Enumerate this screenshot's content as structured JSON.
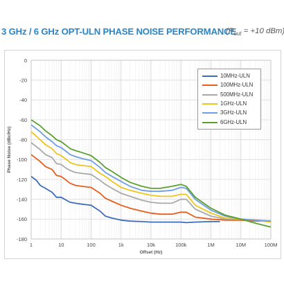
{
  "header": {
    "title": "3 GHz / 6 GHz OPT-ULN PHASE NOISE PERFORMANCE",
    "condition_prefix": "(P",
    "condition_sub": "out",
    "condition_suffix": " = +10 dBm)"
  },
  "chart_data": {
    "type": "line",
    "title": "3 GHz / 6 GHz OPT-ULN PHASE NOISE PERFORMANCE (Pout = +10 dBm)",
    "xlabel": "Offset (Hz)",
    "ylabel": "Phase Noise (dBc/Hz)",
    "x_scale": "log",
    "xlim": [
      1,
      100000000
    ],
    "ylim": [
      -180,
      0
    ],
    "x_ticks": [
      1,
      10,
      100,
      1000,
      10000,
      100000,
      1000000,
      10000000,
      100000000
    ],
    "x_tick_labels": [
      "1",
      "10",
      "100",
      "1k",
      "10k",
      "100k",
      "1M",
      "10M",
      "100M"
    ],
    "y_ticks": [
      0,
      -20,
      -40,
      -60,
      -80,
      -100,
      -120,
      -140,
      -160,
      -180
    ],
    "y_tick_labels": [
      "0",
      "-20",
      "-40",
      "-60",
      "-80",
      "-100",
      "-120",
      "-140",
      "-160",
      "-180"
    ],
    "grid": true,
    "legend_position": "top-right",
    "series": [
      {
        "name": "10MHz-ULN",
        "color": "#3d6bb8",
        "points": [
          [
            1,
            -117
          ],
          [
            1.5,
            -121
          ],
          [
            2,
            -126
          ],
          [
            3,
            -129
          ],
          [
            5,
            -133
          ],
          [
            7,
            -138
          ],
          [
            10,
            -138
          ],
          [
            15,
            -141
          ],
          [
            20,
            -143
          ],
          [
            30,
            -144
          ],
          [
            50,
            -145
          ],
          [
            100,
            -146
          ],
          [
            200,
            -152
          ],
          [
            300,
            -157
          ],
          [
            500,
            -159
          ],
          [
            1000,
            -161
          ],
          [
            2000,
            -162
          ],
          [
            5000,
            -162.5
          ],
          [
            10000,
            -163
          ],
          [
            30000,
            -163
          ],
          [
            100000,
            -163
          ],
          [
            150000,
            -163.5
          ],
          [
            300000,
            -163
          ],
          [
            1000000,
            -162.5
          ],
          [
            2000000,
            -162.5
          ]
        ]
      },
      {
        "name": "100MHz-ULN",
        "color": "#e85d1a",
        "points": [
          [
            1,
            -95
          ],
          [
            2,
            -102
          ],
          [
            3,
            -107
          ],
          [
            5,
            -110
          ],
          [
            7,
            -116
          ],
          [
            10,
            -117
          ],
          [
            15,
            -121
          ],
          [
            20,
            -124
          ],
          [
            30,
            -126
          ],
          [
            50,
            -127
          ],
          [
            100,
            -128
          ],
          [
            200,
            -134
          ],
          [
            300,
            -139
          ],
          [
            500,
            -142
          ],
          [
            1000,
            -146
          ],
          [
            2000,
            -149
          ],
          [
            5000,
            -152
          ],
          [
            10000,
            -154
          ],
          [
            20000,
            -155
          ],
          [
            50000,
            -155
          ],
          [
            100000,
            -153
          ],
          [
            150000,
            -153
          ],
          [
            300000,
            -158
          ],
          [
            1000000,
            -160
          ],
          [
            3000000,
            -161
          ],
          [
            10000000,
            -161
          ],
          [
            30000000,
            -162
          ],
          [
            100000000,
            -162
          ]
        ]
      },
      {
        "name": "500MHz-ULN",
        "color": "#a9a9a9",
        "points": [
          [
            1,
            -83
          ],
          [
            2,
            -90
          ],
          [
            3,
            -95
          ],
          [
            5,
            -98
          ],
          [
            7,
            -104
          ],
          [
            10,
            -105
          ],
          [
            15,
            -109
          ],
          [
            20,
            -111
          ],
          [
            30,
            -113
          ],
          [
            50,
            -114
          ],
          [
            100,
            -115
          ],
          [
            200,
            -121
          ],
          [
            300,
            -125
          ],
          [
            500,
            -129
          ],
          [
            1000,
            -134
          ],
          [
            2000,
            -137
          ],
          [
            5000,
            -141
          ],
          [
            10000,
            -143
          ],
          [
            20000,
            -144
          ],
          [
            50000,
            -144
          ],
          [
            100000,
            -140
          ],
          [
            150000,
            -140
          ],
          [
            300000,
            -150
          ],
          [
            1000000,
            -157
          ],
          [
            3000000,
            -160
          ],
          [
            10000000,
            -160
          ],
          [
            30000000,
            -161
          ],
          [
            100000000,
            -162
          ]
        ]
      },
      {
        "name": "1GHz-ULN",
        "color": "#f0c419",
        "points": [
          [
            1,
            -72
          ],
          [
            2,
            -80
          ],
          [
            3,
            -85
          ],
          [
            5,
            -89
          ],
          [
            7,
            -94
          ],
          [
            10,
            -96
          ],
          [
            15,
            -100
          ],
          [
            20,
            -103
          ],
          [
            30,
            -105
          ],
          [
            50,
            -106
          ],
          [
            100,
            -107
          ],
          [
            200,
            -114
          ],
          [
            300,
            -117
          ],
          [
            500,
            -122
          ],
          [
            1000,
            -128
          ],
          [
            2000,
            -131
          ],
          [
            5000,
            -134
          ],
          [
            10000,
            -136
          ],
          [
            20000,
            -137
          ],
          [
            50000,
            -137
          ],
          [
            100000,
            -135
          ],
          [
            150000,
            -135
          ],
          [
            300000,
            -146
          ],
          [
            1000000,
            -154
          ],
          [
            3000000,
            -159
          ],
          [
            10000000,
            -160
          ],
          [
            30000000,
            -161
          ],
          [
            100000000,
            -163
          ]
        ]
      },
      {
        "name": "3GHz-ULN",
        "color": "#6d9de3",
        "points": [
          [
            1,
            -65
          ],
          [
            2,
            -72
          ],
          [
            3,
            -77
          ],
          [
            5,
            -82
          ],
          [
            7,
            -86
          ],
          [
            10,
            -88
          ],
          [
            15,
            -92
          ],
          [
            20,
            -95
          ],
          [
            30,
            -97
          ],
          [
            50,
            -99
          ],
          [
            100,
            -101
          ],
          [
            200,
            -108
          ],
          [
            300,
            -113
          ],
          [
            500,
            -117
          ],
          [
            1000,
            -122
          ],
          [
            2000,
            -127
          ],
          [
            5000,
            -131
          ],
          [
            10000,
            -132
          ],
          [
            20000,
            -132
          ],
          [
            50000,
            -131
          ],
          [
            100000,
            -128
          ],
          [
            150000,
            -129
          ],
          [
            300000,
            -140
          ],
          [
            1000000,
            -151
          ],
          [
            3000000,
            -157
          ],
          [
            10000000,
            -160
          ],
          [
            30000000,
            -161
          ],
          [
            100000000,
            -162
          ]
        ]
      },
      {
        "name": "6GHz-ULN",
        "color": "#5aa02c",
        "points": [
          [
            1,
            -60
          ],
          [
            2,
            -66
          ],
          [
            3,
            -71
          ],
          [
            5,
            -76
          ],
          [
            7,
            -80
          ],
          [
            10,
            -82
          ],
          [
            15,
            -86
          ],
          [
            20,
            -89
          ],
          [
            30,
            -91
          ],
          [
            50,
            -93
          ],
          [
            100,
            -96
          ],
          [
            200,
            -103
          ],
          [
            300,
            -108
          ],
          [
            500,
            -112
          ],
          [
            1000,
            -118
          ],
          [
            2000,
            -123
          ],
          [
            5000,
            -127
          ],
          [
            10000,
            -129
          ],
          [
            20000,
            -129
          ],
          [
            50000,
            -127
          ],
          [
            100000,
            -125
          ],
          [
            150000,
            -127
          ],
          [
            300000,
            -138
          ],
          [
            1000000,
            -149
          ],
          [
            3000000,
            -156
          ],
          [
            10000000,
            -160
          ],
          [
            30000000,
            -164
          ],
          [
            100000000,
            -168
          ]
        ]
      }
    ]
  }
}
